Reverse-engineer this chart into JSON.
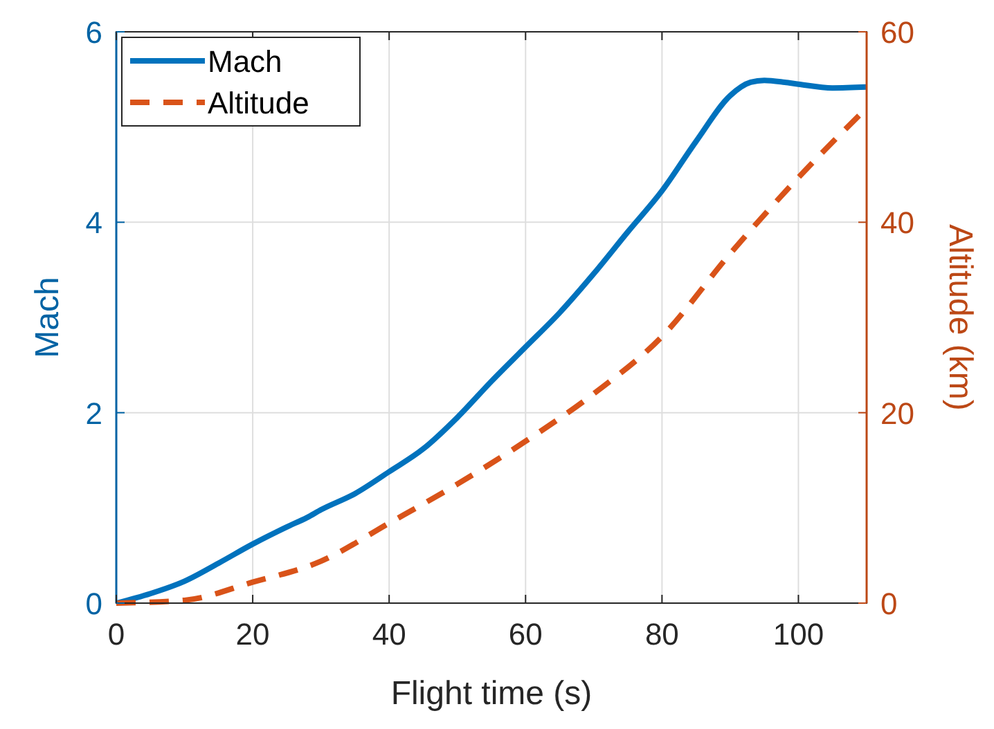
{
  "chart_data": {
    "type": "line",
    "xlabel": "Flight time (s)",
    "ylabel": "Mach",
    "y2label": "Altitude (km)",
    "xlim": [
      0,
      110
    ],
    "xticks": [
      0,
      20,
      40,
      60,
      80,
      100
    ],
    "ylim": [
      0,
      6
    ],
    "yticks": [
      0,
      2,
      4,
      6
    ],
    "y2lim": [
      0,
      60
    ],
    "y2ticks": [
      0,
      20,
      40,
      60
    ],
    "grid": true,
    "legend": "top left",
    "series": [
      {
        "name": "Mach",
        "color": "#0072bd",
        "line_style": "solid",
        "x": [
          0,
          5,
          10,
          15,
          20,
          25,
          28,
          30,
          35,
          40,
          45,
          50,
          55,
          60,
          65,
          70,
          75,
          80,
          85,
          90,
          93,
          95,
          98,
          100,
          105,
          110
        ],
        "values": [
          0,
          0.1,
          0.23,
          0.42,
          0.62,
          0.8,
          0.9,
          0.98,
          1.15,
          1.38,
          1.62,
          1.95,
          2.33,
          2.69,
          3.05,
          3.46,
          3.9,
          4.33,
          4.85,
          5.33,
          5.47,
          5.49,
          5.47,
          5.45,
          5.41,
          5.42
        ]
      },
      {
        "name": "Altitude",
        "color": "#d95319",
        "line_style": "dashed",
        "axis": "y2",
        "x": [
          0,
          10,
          20,
          30,
          40,
          50,
          60,
          70,
          80,
          90,
          100,
          110
        ],
        "values": [
          0,
          0.3,
          2.2,
          4.4,
          8.4,
          12.5,
          17,
          22,
          28,
          36.7,
          44.7,
          52
        ]
      }
    ]
  }
}
